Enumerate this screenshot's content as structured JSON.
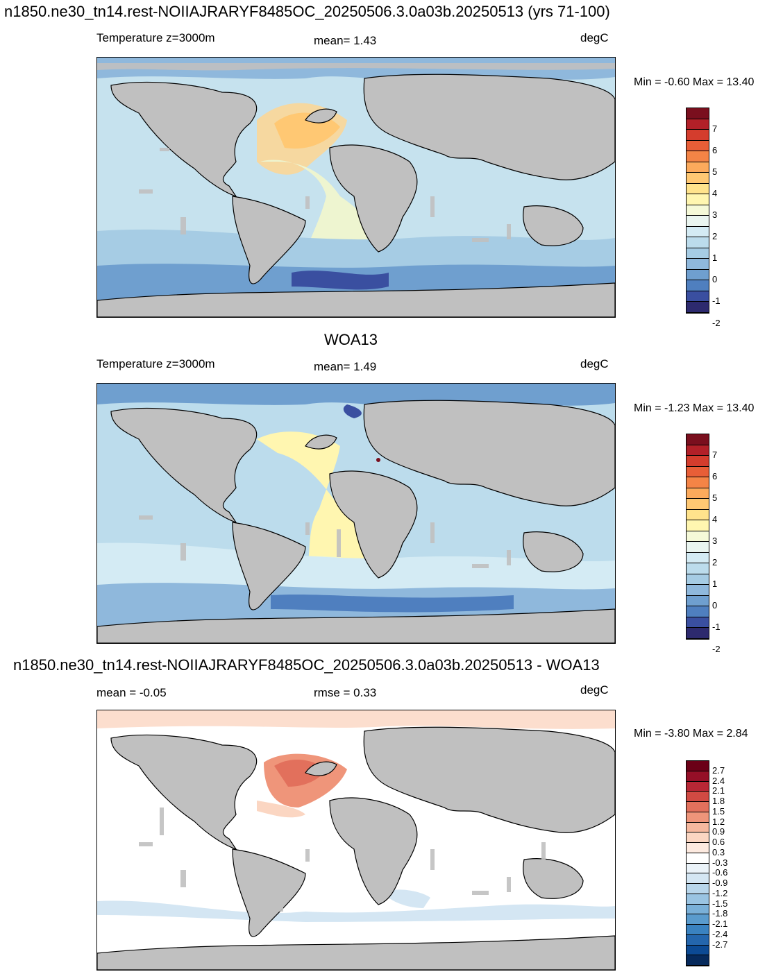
{
  "panels": [
    {
      "title": "n1850.ne30_tn14.rest-NOIIAJRARYF8485OC_20250506.3.0a03b.20250513 (yrs 71-100)",
      "left_label": "Temperature z=3000m",
      "center_label": "mean=   1.43",
      "right_label": "degC",
      "minmax": "Min =  -0.60 Max =  13.40",
      "colorbar": {
        "colors": [
          "#2d2a6e",
          "#3a4fa0",
          "#4f7fbf",
          "#6f9fcf",
          "#8fb8dc",
          "#a6cce4",
          "#bcdcec",
          "#d4ebf4",
          "#eaf5f0",
          "#f5f9d8",
          "#fff6b0",
          "#ffe38c",
          "#ffc873",
          "#fcaa5c",
          "#f48446",
          "#e85e37",
          "#d43d2d",
          "#b22028",
          "#7a0f1e"
        ],
        "ticks": [
          "7",
          "6",
          "5",
          "4",
          "3",
          "2",
          "1",
          "0",
          "-1",
          "-2"
        ]
      }
    },
    {
      "title": "WOA13",
      "left_label": "Temperature z=3000m",
      "center_label": "mean=   1.49",
      "right_label": "degC",
      "minmax": "Min =  -1.23 Max =  13.40",
      "colorbar": {
        "colors": [
          "#2d2a6e",
          "#3a4fa0",
          "#4f7fbf",
          "#6f9fcf",
          "#8fb8dc",
          "#a6cce4",
          "#bcdcec",
          "#d4ebf4",
          "#eaf5f0",
          "#f5f9d8",
          "#fff6b0",
          "#ffe38c",
          "#ffc873",
          "#fcaa5c",
          "#f48446",
          "#e85e37",
          "#d43d2d",
          "#b22028",
          "#7a0f1e"
        ],
        "ticks": [
          "7",
          "6",
          "5",
          "4",
          "3",
          "2",
          "1",
          "0",
          "-1",
          "-2"
        ]
      }
    },
    {
      "title": "n1850.ne30_tn14.rest-NOIIAJRARYF8485OC_20250506.3.0a03b.20250513 - WOA13",
      "left_label": "mean =  -0.05",
      "center_label": "rmse =   0.33",
      "right_label": "degC",
      "minmax": "Min =  -3.80 Max =   2.84",
      "colorbar": {
        "colors": [
          "#062a5c",
          "#0c4a94",
          "#2466ad",
          "#3a82c0",
          "#5a9bcd",
          "#7ab0d8",
          "#9ac4e2",
          "#b8d6eb",
          "#d4e6f3",
          "#ebf3f9",
          "#ffffff",
          "#fdeae0",
          "#fbd6c2",
          "#f6b89e",
          "#ef957a",
          "#e2705c",
          "#d14a43",
          "#b82735",
          "#950f27",
          "#6b0017"
        ],
        "ticks": [
          "2.7",
          "2.4",
          "2.1",
          "1.8",
          "1.5",
          "1.2",
          "0.9",
          "0.6",
          "0.3",
          "-0.3",
          "-0.6",
          "-0.9",
          "-1.2",
          "-1.5",
          "-1.8",
          "-2.1",
          "-2.4",
          "-2.7"
        ]
      }
    }
  ]
}
